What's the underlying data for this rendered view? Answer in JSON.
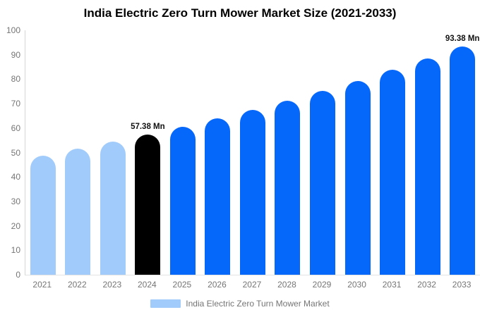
{
  "chart_data": {
    "type": "bar",
    "title": "India Electric Zero Turn Mower Market Size (2021-2033)",
    "unit": "Mn",
    "categories": [
      "2021",
      "2022",
      "2023",
      "2024",
      "2025",
      "2026",
      "2027",
      "2028",
      "2029",
      "2030",
      "2031",
      "2032",
      "2033"
    ],
    "values": [
      48.79,
      51.5,
      54.36,
      57.38,
      60.57,
      63.94,
      67.49,
      71.25,
      75.21,
      79.39,
      83.81,
      88.47,
      93.38
    ],
    "bar_colors": [
      "#A1CBFA",
      "#A1CBFA",
      "#A1CBFA",
      "#000000",
      "#0667FB",
      "#0667FB",
      "#0667FB",
      "#0667FB",
      "#0667FB",
      "#0667FB",
      "#0667FB",
      "#0667FB",
      "#0667FB"
    ],
    "annotations": [
      {
        "index": 3,
        "text": "57.38 Mn"
      },
      {
        "index": 12,
        "text": "93.38 Mn"
      }
    ],
    "xlabel": "",
    "ylabel": "",
    "ylim": [
      0,
      100
    ],
    "y_ticks": [
      0,
      10,
      20,
      30,
      40,
      50,
      60,
      70,
      80,
      90,
      100
    ],
    "grid": "off",
    "axis_color": "#d6d6d6",
    "tick_label_color": "#757575",
    "legend": {
      "label": "India Electric Zero Turn Mower Market",
      "swatch_color": "#A1CBFA",
      "position": "bottom-center"
    }
  }
}
